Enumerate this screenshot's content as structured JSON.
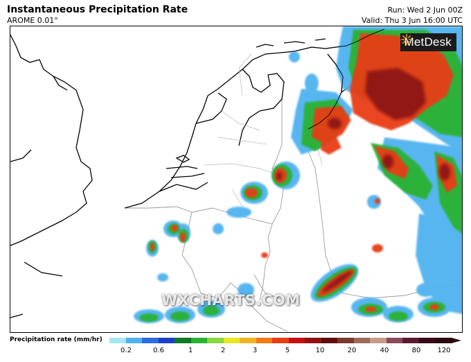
{
  "header": {
    "title": "Instantaneous Precipitation Rate",
    "model": "AROME 0.01°",
    "run": "Run: Wed 2 Jun 00Z",
    "valid": "Valid: Thu 3 Jun 16:00 UTC"
  },
  "branding": {
    "logo_text": "MetDesk",
    "watermark": "WXCHARTS.COM"
  },
  "legend": {
    "title": "Precipitation rate (mm/hr)",
    "ticks": [
      "0.2",
      "0.6",
      "1",
      "2",
      "3",
      "5",
      "10",
      "20",
      "40",
      "80",
      "120"
    ],
    "colors": [
      "#a6e6f5",
      "#4fb2f0",
      "#2c6be0",
      "#1b3fc8",
      "#0f7a24",
      "#29b233",
      "#8ad63b",
      "#e8e820",
      "#f0b420",
      "#f07a1a",
      "#e83c14",
      "#c81010",
      "#8e1212",
      "#5e0e0e",
      "#7a3a2e",
      "#a06a5a",
      "#c89a8a",
      "#8a4a5a",
      "#5a1a30",
      "#3a0a1a",
      "#2a0a10"
    ]
  },
  "colors": {
    "coast": "#000000",
    "border": "#9a9a9a",
    "light_rain": "#4fb2f0",
    "moderate_rain": "#29b233",
    "heavy_rain": "#e83c14",
    "extreme_rain": "#8e1212"
  }
}
